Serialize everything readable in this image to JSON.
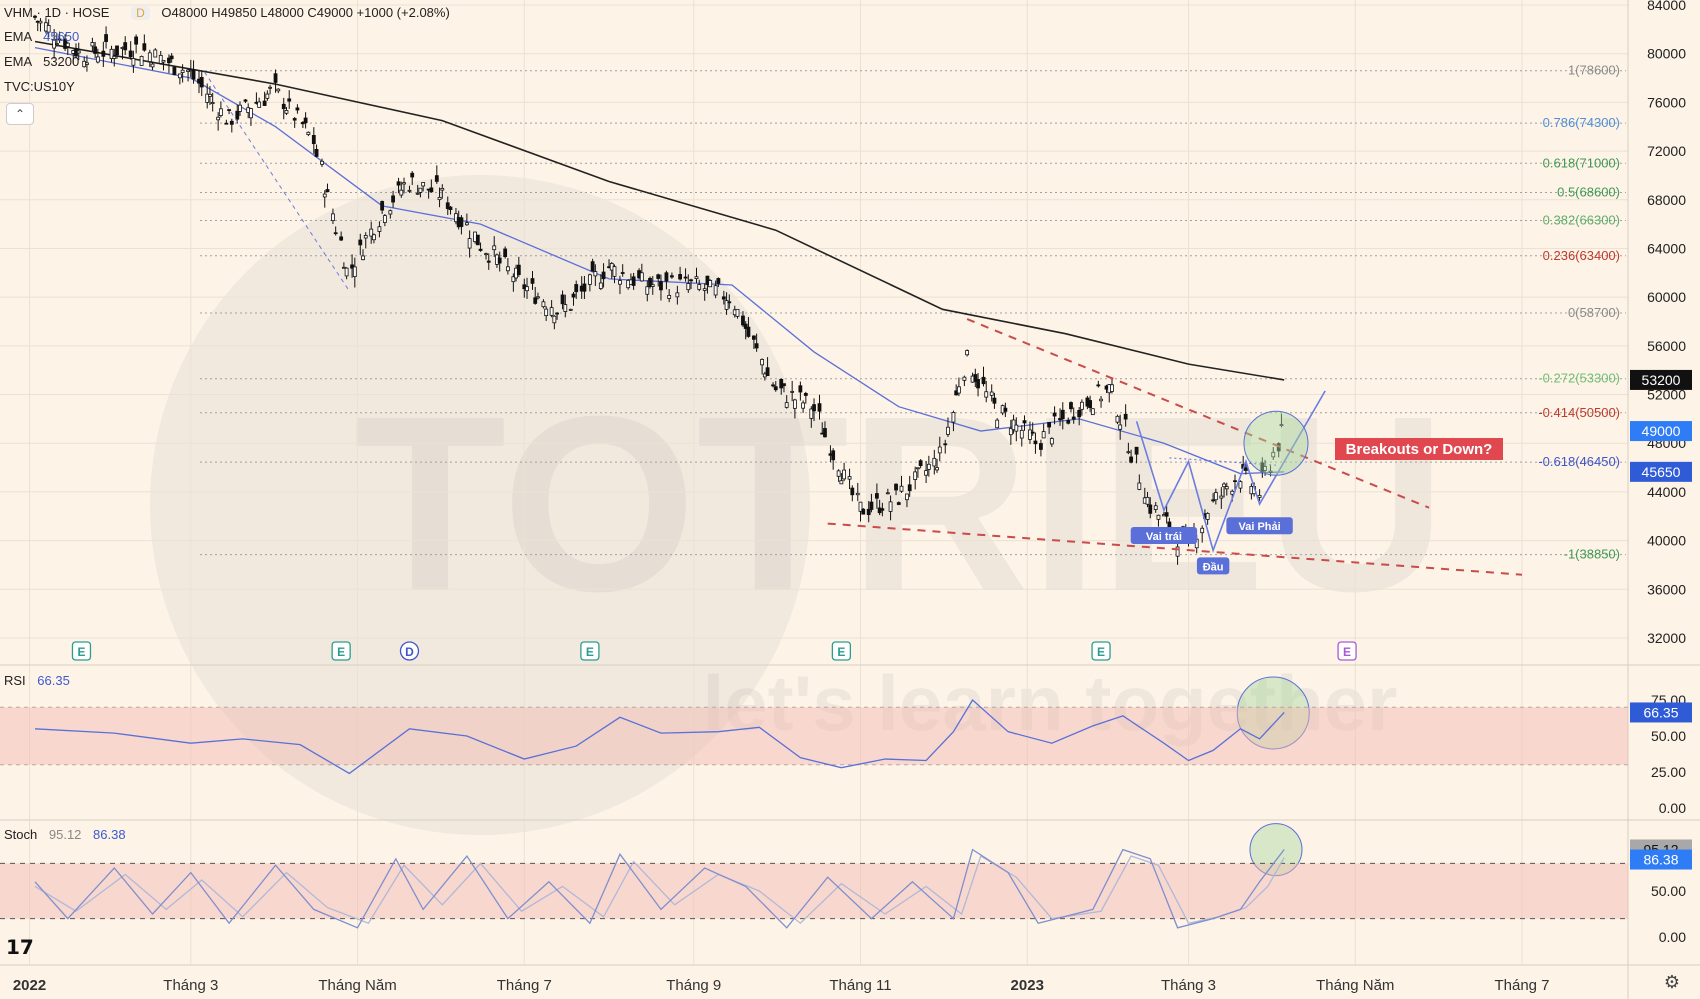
{
  "header": {
    "symbol": "VHM · 1D · HOSE",
    "badge": "D",
    "ohlc": "O48000  H49850  L48000  C49000  +1000 (+2.08%)",
    "ema1_label": "EMA",
    "ema1_value": "45650",
    "ema2_label": "EMA",
    "ema2_value": "53200",
    "tvc_label": "TVC:US10Y",
    "collapse": "⌃"
  },
  "price_axis": [
    "84000",
    "80000",
    "76000",
    "72000",
    "68000",
    "64000",
    "60000",
    "56000",
    "52000",
    "48000",
    "44000",
    "40000",
    "36000",
    "32000"
  ],
  "rsi_axis": [
    "75.00",
    "50.00",
    "25.00",
    "0.00"
  ],
  "stoch_axis": [
    "50.00",
    "0.00"
  ],
  "time_axis": [
    {
      "label": "2022",
      "bold": true,
      "date": "2022-01"
    },
    {
      "label": "Tháng 3",
      "bold": false,
      "date": "2022-03"
    },
    {
      "label": "Tháng Năm",
      "bold": false,
      "date": "2022-05"
    },
    {
      "label": "Tháng 7",
      "bold": false,
      "date": "2022-07"
    },
    {
      "label": "Tháng 9",
      "bold": false,
      "date": "2022-09"
    },
    {
      "label": "Tháng 11",
      "bold": false,
      "date": "2022-11"
    },
    {
      "label": "2023",
      "bold": true,
      "date": "2023-01"
    },
    {
      "label": "Tháng 3",
      "bold": false,
      "date": "2023-03"
    },
    {
      "label": "Tháng Năm",
      "bold": false,
      "date": "2023-05"
    },
    {
      "label": "Tháng 7",
      "bold": false,
      "date": "2023-07"
    }
  ],
  "price_badges": [
    {
      "value": "53200",
      "price": 53200,
      "color": "#111111"
    },
    {
      "value": "49000",
      "price": 49000,
      "color": "#2f7df6"
    },
    {
      "value": "45650",
      "price": 45650,
      "color": "#2f5bd6"
    }
  ],
  "fib_levels": [
    {
      "label": "1(78600)",
      "price": 78600,
      "color": "#8a8a8a"
    },
    {
      "label": "0.786(74300)",
      "price": 74300,
      "color": "#4f8fd8"
    },
    {
      "label": "0.618(71000)",
      "price": 71000,
      "color": "#3f9a53"
    },
    {
      "label": "0.5(68600)",
      "price": 68600,
      "color": "#3f9a53"
    },
    {
      "label": "0.382(66300)",
      "price": 66300,
      "color": "#5fae6a"
    },
    {
      "label": "0.236(63400)",
      "price": 63400,
      "color": "#c0392b"
    },
    {
      "label": "0(58700)",
      "price": 58700,
      "color": "#8a8a8a"
    },
    {
      "label": "-0.272(53300)",
      "price": 53300,
      "color": "#6fbf73"
    },
    {
      "label": "-0.414(50500)",
      "price": 50500,
      "color": "#c0392b"
    },
    {
      "label": "-0.618(46450)",
      "price": 46450,
      "color": "#3f55c8"
    },
    {
      "label": "-1(38850)",
      "price": 38850,
      "color": "#3f9a53"
    }
  ],
  "annotations": {
    "breakout": "Breakouts or Down?",
    "left_shoulder": "Vai trái",
    "head": "Đầu",
    "right_shoulder": "Vai Phải"
  },
  "event_markers": [
    {
      "label": "E",
      "date": "2022-01-20",
      "color": "#2a9d8f"
    },
    {
      "label": "E",
      "date": "2022-04-25",
      "color": "#2a9d8f"
    },
    {
      "label": "D",
      "date": "2022-05-20",
      "color": "#3f55c8"
    },
    {
      "label": "E",
      "date": "2022-07-25",
      "color": "#2a9d8f"
    },
    {
      "label": "E",
      "date": "2022-10-25",
      "color": "#2a9d8f"
    },
    {
      "label": "E",
      "date": "2023-01-28",
      "color": "#2a9d8f"
    },
    {
      "label": "E",
      "date": "2023-04-28",
      "color": "#a45bd6"
    }
  ],
  "rsi": {
    "label": "RSI",
    "value": "66.35"
  },
  "stoch": {
    "label": "Stoch",
    "k": "95.12",
    "d": "86.38"
  },
  "watermark": {
    "brand": "TOTRIEU",
    "tagline": "let's learn together"
  },
  "chart_data": [
    {
      "type": "candlestick",
      "title": "VHM · 1D · HOSE",
      "ylim": [
        32000,
        84000
      ],
      "xlim": [
        "2022-01",
        "2023-08"
      ],
      "last": {
        "open": 48000,
        "high": 49850,
        "low": 48000,
        "close": 49000,
        "change": 1000,
        "change_pct": 2.08
      },
      "close_series": [
        [
          "2022-01-03",
          83000
        ],
        [
          "2022-01-20",
          80000
        ],
        [
          "2022-02-10",
          80500
        ],
        [
          "2022-03-01",
          78500
        ],
        [
          "2022-03-15",
          74500
        ],
        [
          "2022-04-01",
          77000
        ],
        [
          "2022-04-15",
          73000
        ],
        [
          "2022-04-28",
          62000
        ],
        [
          "2022-05-10",
          67000
        ],
        [
          "2022-05-20",
          69500
        ],
        [
          "2022-06-01",
          68500
        ],
        [
          "2022-06-15",
          64500
        ],
        [
          "2022-07-01",
          61000
        ],
        [
          "2022-07-15",
          58800
        ],
        [
          "2022-08-01",
          62500
        ],
        [
          "2022-08-15",
          61000
        ],
        [
          "2022-09-01",
          61000
        ],
        [
          "2022-09-15",
          60000
        ],
        [
          "2022-10-01",
          52500
        ],
        [
          "2022-10-15",
          51000
        ],
        [
          "2022-11-01",
          42500
        ],
        [
          "2022-11-15",
          43500
        ],
        [
          "2022-12-01",
          47000
        ],
        [
          "2022-12-10",
          55000
        ],
        [
          "2022-12-20",
          51000
        ],
        [
          "2023-01-05",
          48000
        ],
        [
          "2023-01-20",
          51000
        ],
        [
          "2023-02-01",
          52500
        ],
        [
          "2023-02-15",
          43000
        ],
        [
          "2023-03-01",
          39500
        ],
        [
          "2023-03-10",
          43000
        ],
        [
          "2023-03-20",
          45500
        ],
        [
          "2023-03-27",
          44000
        ],
        [
          "2023-04-03",
          48000
        ],
        [
          "2023-04-05",
          49000
        ]
      ],
      "ema_45650": [
        [
          "2022-01-03",
          80500
        ],
        [
          "2022-03-01",
          78000
        ],
        [
          "2022-04-01",
          74000
        ],
        [
          "2022-05-10",
          67500
        ],
        [
          "2022-06-15",
          66000
        ],
        [
          "2022-08-01",
          61500
        ],
        [
          "2022-09-15",
          61000
        ],
        [
          "2022-10-15",
          55500
        ],
        [
          "2022-11-15",
          51000
        ],
        [
          "2022-12-15",
          49000
        ],
        [
          "2023-01-20",
          50000
        ],
        [
          "2023-02-20",
          48000
        ],
        [
          "2023-03-20",
          45500
        ],
        [
          "2023-04-05",
          45650
        ]
      ],
      "ema_53200": [
        [
          "2022-01-03",
          81000
        ],
        [
          "2022-04-01",
          77500
        ],
        [
          "2022-06-01",
          74500
        ],
        [
          "2022-08-01",
          69500
        ],
        [
          "2022-10-01",
          65500
        ],
        [
          "2022-12-01",
          59000
        ],
        [
          "2023-01-15",
          57000
        ],
        [
          "2023-03-01",
          54500
        ],
        [
          "2023-04-05",
          53200
        ]
      ],
      "fib_levels": [
        78600,
        74300,
        71000,
        68600,
        66300,
        63400,
        58700,
        53300,
        50500,
        46450,
        38850
      ]
    },
    {
      "type": "line",
      "title": "RSI",
      "ylim": [
        0,
        100
      ],
      "value": 66.35,
      "band": [
        30,
        70
      ],
      "series": [
        [
          "2022-01-03",
          55
        ],
        [
          "2022-02-01",
          52
        ],
        [
          "2022-03-01",
          45
        ],
        [
          "2022-03-20",
          48
        ],
        [
          "2022-04-10",
          44
        ],
        [
          "2022-04-28",
          24
        ],
        [
          "2022-05-20",
          55
        ],
        [
          "2022-06-10",
          50
        ],
        [
          "2022-07-01",
          34
        ],
        [
          "2022-07-20",
          43
        ],
        [
          "2022-08-05",
          63
        ],
        [
          "2022-08-20",
          52
        ],
        [
          "2022-09-10",
          53
        ],
        [
          "2022-09-25",
          56
        ],
        [
          "2022-10-10",
          35
        ],
        [
          "2022-10-25",
          28
        ],
        [
          "2022-11-10",
          34
        ],
        [
          "2022-11-25",
          33
        ],
        [
          "2022-12-05",
          53
        ],
        [
          "2022-12-12",
          75
        ],
        [
          "2022-12-25",
          53
        ],
        [
          "2023-01-10",
          45
        ],
        [
          "2023-01-25",
          57
        ],
        [
          "2023-02-05",
          64
        ],
        [
          "2023-02-20",
          45
        ],
        [
          "2023-03-01",
          33
        ],
        [
          "2023-03-10",
          40
        ],
        [
          "2023-03-20",
          55
        ],
        [
          "2023-03-27",
          48
        ],
        [
          "2023-04-05",
          66.35
        ]
      ]
    },
    {
      "type": "line",
      "title": "Stoch",
      "ylim": [
        0,
        100
      ],
      "k": 95.12,
      "d": 86.38,
      "band": [
        20,
        80
      ],
      "series": [
        {
          "name": "95.12",
          "values": [
            [
              "2022-01-03",
              60
            ],
            [
              "2022-01-15",
              20
            ],
            [
              "2022-02-01",
              75
            ],
            [
              "2022-02-15",
              25
            ],
            [
              "2022-03-01",
              70
            ],
            [
              "2022-03-15",
              15
            ],
            [
              "2022-04-01",
              78
            ],
            [
              "2022-04-15",
              30
            ],
            [
              "2022-05-01",
              10
            ],
            [
              "2022-05-15",
              85
            ],
            [
              "2022-05-25",
              30
            ],
            [
              "2022-06-10",
              88
            ],
            [
              "2022-06-25",
              20
            ],
            [
              "2022-07-10",
              60
            ],
            [
              "2022-07-25",
              15
            ],
            [
              "2022-08-05",
              90
            ],
            [
              "2022-08-20",
              30
            ],
            [
              "2022-09-05",
              75
            ],
            [
              "2022-09-20",
              55
            ],
            [
              "2022-10-05",
              10
            ],
            [
              "2022-10-20",
              65
            ],
            [
              "2022-11-05",
              20
            ],
            [
              "2022-11-20",
              60
            ],
            [
              "2022-12-05",
              20
            ],
            [
              "2022-12-12",
              95
            ],
            [
              "2022-12-25",
              70
            ],
            [
              "2023-01-05",
              15
            ],
            [
              "2023-01-25",
              30
            ],
            [
              "2023-02-05",
              95
            ],
            [
              "2023-02-15",
              85
            ],
            [
              "2023-02-25",
              10
            ],
            [
              "2023-03-10",
              20
            ],
            [
              "2023-03-20",
              30
            ],
            [
              "2023-03-27",
              60
            ],
            [
              "2023-04-05",
              95.12
            ]
          ]
        },
        {
          "name": "86.38",
          "values": [
            [
              "2022-01-03",
              55
            ],
            [
              "2022-01-18",
              28
            ],
            [
              "2022-02-05",
              68
            ],
            [
              "2022-02-20",
              30
            ],
            [
              "2022-03-05",
              62
            ],
            [
              "2022-03-20",
              22
            ],
            [
              "2022-04-05",
              70
            ],
            [
              "2022-04-20",
              32
            ],
            [
              "2022-05-05",
              15
            ],
            [
              "2022-05-18",
              78
            ],
            [
              "2022-06-01",
              35
            ],
            [
              "2022-06-15",
              80
            ],
            [
              "2022-06-30",
              28
            ],
            [
              "2022-07-15",
              55
            ],
            [
              "2022-07-30",
              22
            ],
            [
              "2022-08-10",
              82
            ],
            [
              "2022-08-25",
              35
            ],
            [
              "2022-09-10",
              68
            ],
            [
              "2022-09-25",
              50
            ],
            [
              "2022-10-10",
              15
            ],
            [
              "2022-10-25",
              58
            ],
            [
              "2022-11-10",
              25
            ],
            [
              "2022-11-25",
              55
            ],
            [
              "2022-12-08",
              25
            ],
            [
              "2022-12-15",
              88
            ],
            [
              "2022-12-28",
              65
            ],
            [
              "2023-01-10",
              20
            ],
            [
              "2023-01-28",
              28
            ],
            [
              "2023-02-08",
              88
            ],
            [
              "2023-02-18",
              78
            ],
            [
              "2023-03-01",
              15
            ],
            [
              "2023-03-12",
              22
            ],
            [
              "2023-03-22",
              32
            ],
            [
              "2023-03-30",
              55
            ],
            [
              "2023-04-05",
              86.38
            ]
          ]
        }
      ]
    }
  ]
}
